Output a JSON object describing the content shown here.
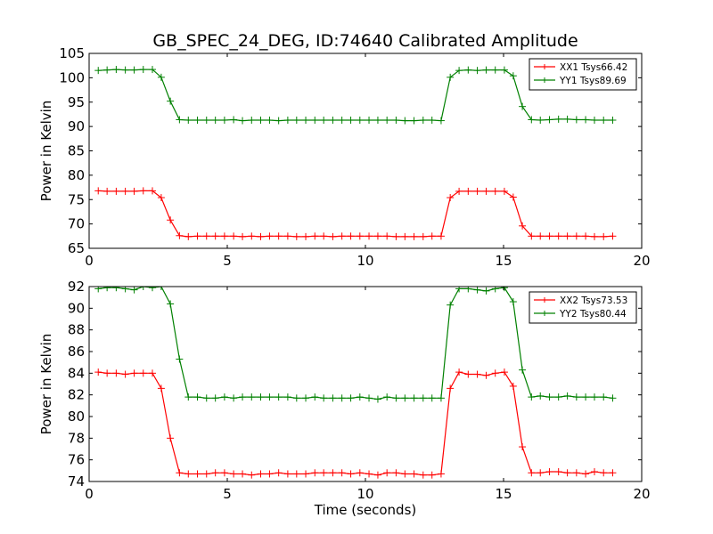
{
  "figure": {
    "title": "GB_SPEC_24_DEG, ID:74640 Calibrated Amplitude"
  },
  "chart_data": [
    {
      "type": "line",
      "title": "GB_SPEC_24_DEG, ID:74640 Calibrated Amplitude",
      "xlabel": "",
      "ylabel": "Power in Kelvin",
      "xlim": [
        0,
        20
      ],
      "ylim": [
        65,
        105
      ],
      "xticks": [
        0,
        5,
        10,
        15,
        20
      ],
      "yticks": [
        65,
        70,
        75,
        80,
        85,
        90,
        95,
        100,
        105
      ],
      "grid": false,
      "legend": "top-right",
      "x": [
        0.33,
        0.65,
        0.98,
        1.31,
        1.63,
        1.96,
        2.29,
        2.61,
        2.94,
        3.27,
        3.59,
        3.92,
        4.25,
        4.57,
        4.9,
        5.23,
        5.55,
        5.88,
        6.21,
        6.53,
        6.86,
        7.19,
        7.51,
        7.84,
        8.17,
        8.49,
        8.82,
        9.15,
        9.47,
        9.8,
        10.13,
        10.45,
        10.78,
        11.11,
        11.43,
        11.76,
        12.09,
        12.41,
        12.74,
        13.07,
        13.39,
        13.72,
        14.05,
        14.37,
        14.7,
        15.03,
        15.35,
        15.68,
        16.01,
        16.33,
        16.66,
        16.99,
        17.31,
        17.64,
        17.97,
        18.29,
        18.62,
        18.95
      ],
      "series": [
        {
          "name": "XX1 Tsys66.42",
          "color": "#ff0000",
          "values": [
            76.8,
            76.7,
            76.7,
            76.7,
            76.7,
            76.8,
            76.8,
            75.4,
            70.8,
            67.6,
            67.4,
            67.5,
            67.5,
            67.5,
            67.5,
            67.5,
            67.4,
            67.5,
            67.4,
            67.5,
            67.5,
            67.5,
            67.4,
            67.4,
            67.5,
            67.5,
            67.4,
            67.5,
            67.5,
            67.5,
            67.5,
            67.5,
            67.5,
            67.4,
            67.4,
            67.4,
            67.4,
            67.5,
            67.5,
            75.4,
            76.7,
            76.7,
            76.7,
            76.7,
            76.7,
            76.7,
            75.5,
            69.6,
            67.5,
            67.5,
            67.5,
            67.5,
            67.5,
            67.5,
            67.5,
            67.4,
            67.4,
            67.5
          ]
        },
        {
          "name": "YY1 Tsys89.69",
          "color": "#008000",
          "values": [
            101.5,
            101.6,
            101.7,
            101.6,
            101.6,
            101.7,
            101.7,
            100.1,
            95.2,
            91.4,
            91.3,
            91.3,
            91.3,
            91.3,
            91.3,
            91.4,
            91.2,
            91.3,
            91.3,
            91.3,
            91.2,
            91.3,
            91.3,
            91.3,
            91.3,
            91.3,
            91.3,
            91.3,
            91.3,
            91.3,
            91.3,
            91.3,
            91.3,
            91.3,
            91.2,
            91.2,
            91.3,
            91.3,
            91.2,
            100.1,
            101.5,
            101.6,
            101.5,
            101.6,
            101.6,
            101.6,
            100.4,
            94.1,
            91.4,
            91.3,
            91.4,
            91.5,
            91.5,
            91.4,
            91.4,
            91.3,
            91.3,
            91.3
          ]
        }
      ]
    },
    {
      "type": "line",
      "title": "",
      "xlabel": "Time (seconds)",
      "ylabel": "Power in Kelvin",
      "xlim": [
        0,
        20
      ],
      "ylim": [
        74,
        92
      ],
      "xticks": [
        0,
        5,
        10,
        15,
        20
      ],
      "yticks": [
        74,
        76,
        78,
        80,
        82,
        84,
        86,
        88,
        90,
        92
      ],
      "grid": false,
      "legend": "top-right",
      "x": [
        0.33,
        0.65,
        0.98,
        1.31,
        1.63,
        1.96,
        2.29,
        2.61,
        2.94,
        3.27,
        3.59,
        3.92,
        4.25,
        4.57,
        4.9,
        5.23,
        5.55,
        5.88,
        6.21,
        6.53,
        6.86,
        7.19,
        7.51,
        7.84,
        8.17,
        8.49,
        8.82,
        9.15,
        9.47,
        9.8,
        10.13,
        10.45,
        10.78,
        11.11,
        11.43,
        11.76,
        12.09,
        12.41,
        12.74,
        13.07,
        13.39,
        13.72,
        14.05,
        14.37,
        14.7,
        15.03,
        15.35,
        15.68,
        16.01,
        16.33,
        16.66,
        16.99,
        17.31,
        17.64,
        17.97,
        18.29,
        18.62,
        18.95
      ],
      "series": [
        {
          "name": "XX2 Tsys73.53",
          "color": "#ff0000",
          "values": [
            84.1,
            84.0,
            84.0,
            83.9,
            84.0,
            84.0,
            84.0,
            82.6,
            78.0,
            74.8,
            74.7,
            74.7,
            74.7,
            74.8,
            74.8,
            74.7,
            74.7,
            74.6,
            74.7,
            74.7,
            74.8,
            74.7,
            74.7,
            74.7,
            74.8,
            74.8,
            74.8,
            74.8,
            74.7,
            74.8,
            74.7,
            74.6,
            74.8,
            74.8,
            74.7,
            74.7,
            74.6,
            74.6,
            74.7,
            82.6,
            84.1,
            83.9,
            83.9,
            83.8,
            84.0,
            84.1,
            82.8,
            77.2,
            74.8,
            74.8,
            74.9,
            74.9,
            74.8,
            74.8,
            74.7,
            74.9,
            74.8,
            74.8
          ]
        },
        {
          "name": "YY2 Tsys80.44",
          "color": "#008000",
          "values": [
            91.8,
            91.9,
            91.9,
            91.8,
            91.7,
            92.0,
            91.9,
            92.0,
            90.4,
            85.3,
            81.8,
            81.8,
            81.7,
            81.7,
            81.8,
            81.7,
            81.8,
            81.8,
            81.8,
            81.8,
            81.8,
            81.8,
            81.7,
            81.7,
            81.8,
            81.7,
            81.7,
            81.7,
            81.7,
            81.8,
            81.7,
            81.6,
            81.8,
            81.7,
            81.7,
            81.7,
            81.7,
            81.7,
            81.7,
            90.3,
            91.8,
            91.8,
            91.7,
            91.6,
            91.8,
            91.9,
            90.6,
            84.3,
            81.8,
            81.9,
            81.8,
            81.8,
            81.9,
            81.8,
            81.8,
            81.8,
            81.8,
            81.7
          ]
        }
      ]
    }
  ]
}
